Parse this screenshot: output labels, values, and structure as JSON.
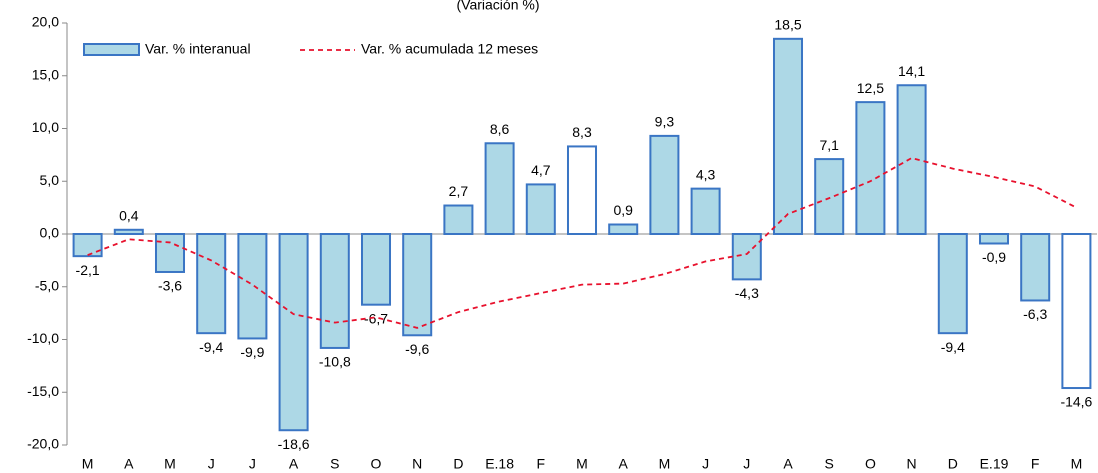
{
  "chart_data": {
    "type": "bar",
    "subtitle": "(Variación %)",
    "categories": [
      "M",
      "A",
      "M",
      "J",
      "J",
      "A",
      "S",
      "O",
      "N",
      "D",
      "E.18",
      "F",
      "M",
      "A",
      "M",
      "J",
      "J",
      "A",
      "S",
      "O",
      "N",
      "D",
      "E.19",
      "F",
      "M"
    ],
    "series": [
      {
        "name": "Var. % interanual",
        "type": "bar",
        "color": "#add8e6",
        "stroke": "#3a75c4",
        "colors": [
          "#add8e6",
          "#add8e6",
          "#add8e6",
          "#add8e6",
          "#add8e6",
          "#add8e6",
          "#add8e6",
          "#add8e6",
          "#add8e6",
          "#add8e6",
          "#add8e6",
          "#add8e6",
          "#ffffff",
          "#add8e6",
          "#add8e6",
          "#add8e6",
          "#add8e6",
          "#add8e6",
          "#add8e6",
          "#add8e6",
          "#add8e6",
          "#add8e6",
          "#add8e6",
          "#add8e6",
          "#ffffff"
        ],
        "values": [
          -2.1,
          0.4,
          -3.6,
          -9.4,
          -9.9,
          -18.6,
          -10.8,
          -6.7,
          -9.6,
          2.7,
          8.6,
          4.7,
          8.3,
          0.9,
          9.3,
          4.3,
          -4.3,
          18.5,
          7.1,
          12.5,
          14.1,
          -9.4,
          -0.9,
          -6.3,
          -14.6
        ],
        "value_labels": [
          "-2,1",
          "0,4",
          "-3,6",
          "-9,4",
          "-9,9",
          "-18,6",
          "-10,8",
          "-6,7",
          "-9,6",
          "2,7",
          "8,6",
          "4,7",
          "8,3",
          "0,9",
          "9,3",
          "4,3",
          "-4,3",
          "18,5",
          "7,1",
          "12,5",
          "14,1",
          "-9,4",
          "-0,9",
          "-6,3",
          "-14,6"
        ]
      },
      {
        "name": "Var. % acumulada 12 meses",
        "type": "line",
        "color": "#e8112d",
        "dashed": true,
        "values": [
          -2.0,
          -0.5,
          -0.8,
          -2.5,
          -4.8,
          -7.6,
          -8.4,
          -7.9,
          -8.9,
          -7.4,
          -6.4,
          -5.6,
          -4.8,
          -4.7,
          -3.8,
          -2.6,
          -1.9,
          1.9,
          3.4,
          5.0,
          7.2,
          6.2,
          5.4,
          4.5,
          2.5
        ]
      }
    ],
    "ylim": [
      -20,
      20
    ],
    "yticks": [
      {
        "value": -20,
        "label": "-20,0"
      },
      {
        "value": -15,
        "label": "-15,0"
      },
      {
        "value": -10,
        "label": "-10,0"
      },
      {
        "value": -5,
        "label": "-5,0"
      },
      {
        "value": 0,
        "label": "0,0"
      },
      {
        "value": 5,
        "label": "5,0"
      },
      {
        "value": 10,
        "label": "10,0"
      },
      {
        "value": 15,
        "label": "15,0"
      },
      {
        "value": 20,
        "label": "20,0"
      }
    ],
    "grid": false
  }
}
